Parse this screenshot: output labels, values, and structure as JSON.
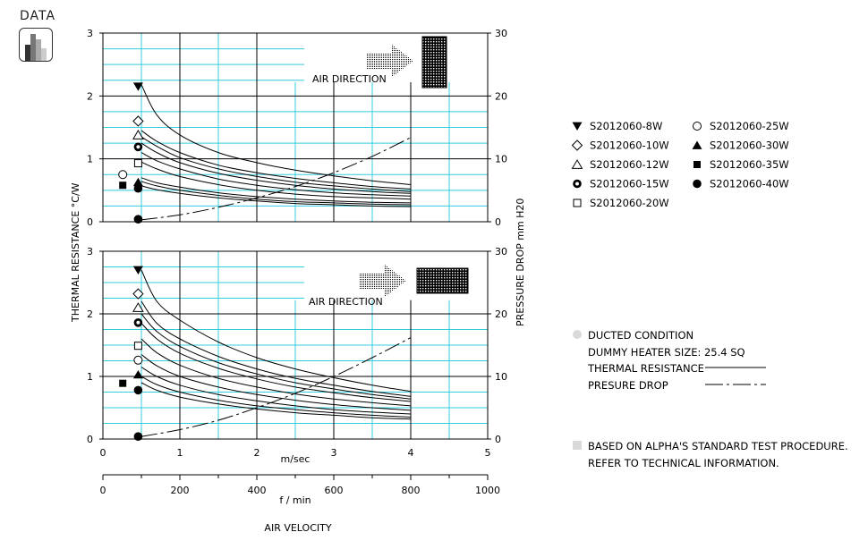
{
  "header": {
    "title": "DATA",
    "badge_icon": "bar-chart-icon"
  },
  "colors": {
    "grid_cyan": "#33ccdd",
    "grid_black": "#000000",
    "line": "#000000",
    "note_marker": "#d9d9d9"
  },
  "chart_data": {
    "type": "line",
    "y_left_label": "THERMAL RESISTANCE  °C/W",
    "y_right_label": "PRESSURE DROP  mm H20",
    "x_label_primary": "m/sec",
    "x_label_secondary": "f / min",
    "x_title": "AIR VELOCITY",
    "x_primary_range": [
      0,
      5
    ],
    "x_primary_ticks": [
      "0",
      "1",
      "2",
      "3",
      "4",
      "5"
    ],
    "x_secondary_range": [
      0,
      1000
    ],
    "x_secondary_ticks": [
      "0",
      "200",
      "400",
      "600",
      "800",
      "1000"
    ],
    "y_left_range": [
      0,
      3
    ],
    "y_left_ticks": [
      "0",
      "1",
      "2",
      "3"
    ],
    "y_right_range": [
      0,
      30
    ],
    "y_right_ticks": [
      "0",
      "10",
      "20",
      "30"
    ],
    "panels": [
      {
        "annotation": "AIR DIRECTION",
        "series": [
          {
            "name": "S2012060-8W",
            "marker": "triangle-down-filled",
            "marker_x": 0.4,
            "marker_y": 2.15,
            "x": [
              0.5,
              0.7,
              1,
              1.5,
              2,
              2.5,
              3,
              3.5,
              4
            ],
            "y": [
              2.18,
              1.7,
              1.38,
              1.1,
              0.94,
              0.82,
              0.73,
              0.65,
              0.59
            ]
          },
          {
            "name": "S2012060-10W",
            "marker": "diamond-open",
            "marker_x": 0.4,
            "marker_y": 1.6,
            "x": [
              0.5,
              0.7,
              1,
              1.5,
              2,
              2.5,
              3,
              3.5,
              4
            ],
            "y": [
              1.45,
              1.28,
              1.1,
              0.9,
              0.78,
              0.69,
              0.62,
              0.56,
              0.52
            ]
          },
          {
            "name": "S2012060-12W",
            "marker": "triangle-up-open",
            "marker_x": 0.4,
            "marker_y": 1.38,
            "x": [
              0.5,
              0.7,
              1,
              1.5,
              2,
              2.5,
              3,
              3.5,
              4
            ],
            "y": [
              1.35,
              1.2,
              1.02,
              0.84,
              0.72,
              0.63,
              0.57,
              0.52,
              0.48
            ]
          },
          {
            "name": "S2012060-15W",
            "marker": "bullseye",
            "marker_x": 0.4,
            "marker_y": 1.19,
            "x": [
              0.5,
              0.7,
              1,
              1.5,
              2,
              2.5,
              3,
              3.5,
              4
            ],
            "y": [
              1.25,
              1.1,
              0.94,
              0.77,
              0.66,
              0.58,
              0.52,
              0.48,
              0.45
            ]
          },
          {
            "name": "S2012060-20W",
            "marker": "square-open",
            "marker_x": 0.4,
            "marker_y": 0.93,
            "x": [
              0.5,
              0.7,
              1,
              1.5,
              2,
              2.5,
              3,
              3.5,
              4
            ],
            "y": [
              1.1,
              0.97,
              0.84,
              0.68,
              0.58,
              0.51,
              0.46,
              0.43,
              0.41
            ]
          },
          {
            "name": "S2012060-25W",
            "marker": "circle-open",
            "marker_x": 0.2,
            "marker_y": 0.75,
            "x": [
              0.5,
              0.7,
              1,
              1.5,
              2,
              2.5,
              3,
              3.5,
              4
            ],
            "y": [
              0.95,
              0.84,
              0.72,
              0.59,
              0.5,
              0.44,
              0.4,
              0.38,
              0.36
            ]
          },
          {
            "name": "S2012060-30W",
            "marker": "triangle-up-filled",
            "marker_x": 0.4,
            "marker_y": 0.63,
            "x": [
              0.5,
              0.7,
              1,
              1.5,
              2,
              2.5,
              3,
              3.5,
              4
            ],
            "y": [
              0.7,
              0.62,
              0.55,
              0.46,
              0.4,
              0.36,
              0.33,
              0.31,
              0.3
            ]
          },
          {
            "name": "S2012060-35W",
            "marker": "square-filled",
            "marker_x": 0.2,
            "marker_y": 0.58,
            "x": [
              0.5,
              0.7,
              1,
              1.5,
              2,
              2.5,
              3,
              3.5,
              4
            ],
            "y": [
              0.64,
              0.57,
              0.5,
              0.42,
              0.36,
              0.32,
              0.3,
              0.28,
              0.27
            ]
          },
          {
            "name": "S2012060-40W",
            "marker": "circle-filled",
            "marker_x": 0.4,
            "marker_y": 0.53,
            "x": [
              0.5,
              0.7,
              1,
              1.5,
              2,
              2.5,
              3,
              3.5,
              4
            ],
            "y": [
              0.57,
              0.51,
              0.45,
              0.38,
              0.33,
              0.29,
              0.27,
              0.25,
              0.24
            ]
          }
        ],
        "pressure_drop": {
          "marker": "circle-filled",
          "marker_x": 0.4,
          "marker_y": 0.4,
          "x": [
            0.5,
            1,
            1.5,
            2,
            2.5,
            3,
            3.5,
            4
          ],
          "y": [
            0.3,
            1.1,
            2.3,
            3.8,
            5.6,
            7.8,
            10.4,
            13.4
          ]
        }
      },
      {
        "annotation": "AIR DIRECTION",
        "series": [
          {
            "name": "S2012060-8W",
            "marker": "triangle-down-filled",
            "marker_x": 0.4,
            "marker_y": 2.7,
            "x": [
              0.5,
              0.7,
              1,
              1.5,
              2,
              2.5,
              3,
              3.5,
              4
            ],
            "y": [
              2.7,
              2.2,
              1.9,
              1.55,
              1.3,
              1.12,
              0.98,
              0.86,
              0.76
            ]
          },
          {
            "name": "S2012060-10W",
            "marker": "diamond-open",
            "marker_x": 0.4,
            "marker_y": 2.32,
            "x": [
              0.5,
              0.7,
              1,
              1.5,
              2,
              2.5,
              3,
              3.5,
              4
            ],
            "y": [
              2.2,
              1.85,
              1.6,
              1.32,
              1.12,
              0.97,
              0.86,
              0.76,
              0.68
            ]
          },
          {
            "name": "S2012060-12W",
            "marker": "triangle-up-open",
            "marker_x": 0.4,
            "marker_y": 2.1,
            "x": [
              0.5,
              0.7,
              1,
              1.5,
              2,
              2.5,
              3,
              3.5,
              4
            ],
            "y": [
              2.0,
              1.72,
              1.48,
              1.22,
              1.04,
              0.9,
              0.8,
              0.71,
              0.64
            ]
          },
          {
            "name": "S2012060-15W",
            "marker": "bullseye",
            "marker_x": 0.4,
            "marker_y": 1.86,
            "x": [
              0.5,
              0.7,
              1,
              1.5,
              2,
              2.5,
              3,
              3.5,
              4
            ],
            "y": [
              1.85,
              1.6,
              1.37,
              1.13,
              0.96,
              0.83,
              0.74,
              0.66,
              0.6
            ]
          },
          {
            "name": "S2012060-20W",
            "marker": "square-open",
            "marker_x": 0.4,
            "marker_y": 1.49,
            "x": [
              0.5,
              0.7,
              1,
              1.5,
              2,
              2.5,
              3,
              3.5,
              4
            ],
            "y": [
              1.6,
              1.38,
              1.18,
              0.97,
              0.83,
              0.72,
              0.64,
              0.58,
              0.53
            ]
          },
          {
            "name": "S2012060-25W",
            "marker": "circle-open",
            "marker_x": 0.4,
            "marker_y": 1.26,
            "x": [
              0.5,
              0.7,
              1,
              1.5,
              2,
              2.5,
              3,
              3.5,
              4
            ],
            "y": [
              1.35,
              1.17,
              1.0,
              0.83,
              0.71,
              0.62,
              0.55,
              0.5,
              0.46
            ]
          },
          {
            "name": "S2012060-30W",
            "marker": "triangle-up-filled",
            "marker_x": 0.4,
            "marker_y": 1.03,
            "x": [
              0.5,
              0.7,
              1,
              1.5,
              2,
              2.5,
              3,
              3.5,
              4
            ],
            "y": [
              1.15,
              1.0,
              0.86,
              0.71,
              0.61,
              0.53,
              0.47,
              0.43,
              0.4
            ]
          },
          {
            "name": "S2012060-35W",
            "marker": "square-filled",
            "marker_x": 0.2,
            "marker_y": 0.89,
            "x": [
              0.5,
              0.7,
              1,
              1.5,
              2,
              2.5,
              3,
              3.5,
              4
            ],
            "y": [
              1.0,
              0.87,
              0.75,
              0.62,
              0.53,
              0.47,
              0.42,
              0.38,
              0.35
            ]
          },
          {
            "name": "S2012060-40W",
            "marker": "circle-filled",
            "marker_x": 0.4,
            "marker_y": 0.78,
            "x": [
              0.5,
              0.7,
              1,
              1.5,
              2,
              2.5,
              3,
              3.5,
              4
            ],
            "y": [
              0.9,
              0.78,
              0.67,
              0.56,
              0.48,
              0.42,
              0.38,
              0.34,
              0.32
            ]
          }
        ],
        "pressure_drop": {
          "marker": "circle-filled",
          "marker_x": 0.4,
          "marker_y": 0.4,
          "x": [
            0.5,
            1,
            1.5,
            2,
            2.5,
            3,
            3.5,
            4
          ],
          "y": [
            0.4,
            1.5,
            3.0,
            5.0,
            7.3,
            10.0,
            13.0,
            16.2
          ]
        }
      }
    ],
    "legend": [
      {
        "label": "S2012060-8W",
        "marker": "triangle-down-filled"
      },
      {
        "label": "S2012060-10W",
        "marker": "diamond-open"
      },
      {
        "label": "S2012060-12W",
        "marker": "triangle-up-open"
      },
      {
        "label": "S2012060-15W",
        "marker": "bullseye"
      },
      {
        "label": "S2012060-20W",
        "marker": "square-open"
      },
      {
        "label": "S2012060-25W",
        "marker": "circle-open"
      },
      {
        "label": "S2012060-30W",
        "marker": "triangle-up-filled"
      },
      {
        "label": "S2012060-35W",
        "marker": "square-filled"
      },
      {
        "label": "S2012060-40W",
        "marker": "circle-filled"
      }
    ],
    "notes": {
      "ducted_condition": "DUCTED CONDITION",
      "dummy_heater": "DUMMY HEATER SIZE: 25.4 SQ",
      "thermal_resistance": "THERMAL RESISTANCE",
      "pressure_drop": "PRESURE DROP",
      "standard_line1": "BASED ON ALPHA'S STANDARD TEST PROCEDURE.",
      "standard_line2": "REFER TO TECHNICAL INFORMATION."
    }
  }
}
